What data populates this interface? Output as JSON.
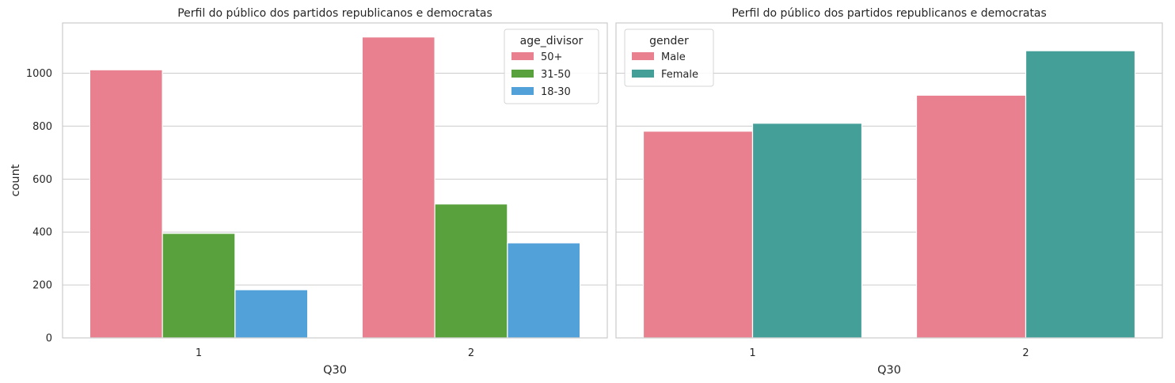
{
  "chart_data": [
    {
      "type": "bar",
      "title": "Perfil do público dos partidos republicanos e democratas",
      "xlabel": "Q30",
      "ylabel": "count",
      "categories": [
        "1",
        "2"
      ],
      "ylim": [
        0,
        1190
      ],
      "yticks": [
        0,
        200,
        400,
        600,
        800,
        1000
      ],
      "grid": true,
      "legend": {
        "title": "age_divisor",
        "placement": "top-right"
      },
      "series": [
        {
          "name": "50+",
          "color": "#e8808f",
          "values": [
            1013,
            1137
          ]
        },
        {
          "name": "31-50",
          "color": "#59a13d",
          "values": [
            395,
            506
          ]
        },
        {
          "name": "18-30",
          "color": "#52a1d9",
          "values": [
            182,
            359
          ]
        }
      ]
    },
    {
      "type": "bar",
      "title": "Perfil do público dos partidos republicanos e democratas",
      "xlabel": "Q30",
      "ylabel": "",
      "categories": [
        "1",
        "2"
      ],
      "ylim": [
        0,
        1190
      ],
      "yticks": [
        0,
        200,
        400,
        600,
        800,
        1000
      ],
      "grid": true,
      "legend": {
        "title": "gender",
        "placement": "top-left"
      },
      "series": [
        {
          "name": "Male",
          "color": "#e8808f",
          "values": [
            781,
            917
          ]
        },
        {
          "name": "Female",
          "color": "#459f99",
          "values": [
            811,
            1085
          ]
        }
      ]
    }
  ]
}
